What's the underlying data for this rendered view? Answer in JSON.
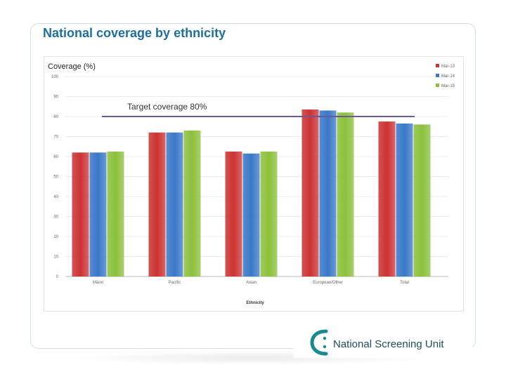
{
  "slide": {
    "title": "National coverage by ethnicity"
  },
  "logo": {
    "text": "National Screening Unit",
    "icon": "c-swoosh-logo",
    "color": "#1a8a8f"
  },
  "chart_data": {
    "type": "bar",
    "title": "Coverage (%)",
    "xlabel": "Ethnicity",
    "ylabel": "Coverage (%)",
    "ylim": [
      0,
      100
    ],
    "yticks": [
      0,
      10,
      20,
      30,
      40,
      50,
      60,
      70,
      80,
      90,
      100
    ],
    "grid": true,
    "legend_position": "top-right",
    "categories": [
      "Māori",
      "Pacific",
      "Asian",
      "European/Other",
      "Total"
    ],
    "series": [
      {
        "name": "Mar-13",
        "color": "#cc3333",
        "values": [
          62,
          72,
          62.5,
          83.5,
          77.5
        ]
      },
      {
        "name": "Mar-14",
        "color": "#3a78c8",
        "values": [
          62,
          72,
          61.5,
          83,
          76.5
        ]
      },
      {
        "name": "Mar-15",
        "color": "#8cc03c",
        "values": [
          62.5,
          73,
          62.5,
          82,
          76
        ]
      }
    ],
    "target": {
      "value": 80,
      "label": "Target coverage 80%",
      "color": "#6a5a9a"
    }
  }
}
